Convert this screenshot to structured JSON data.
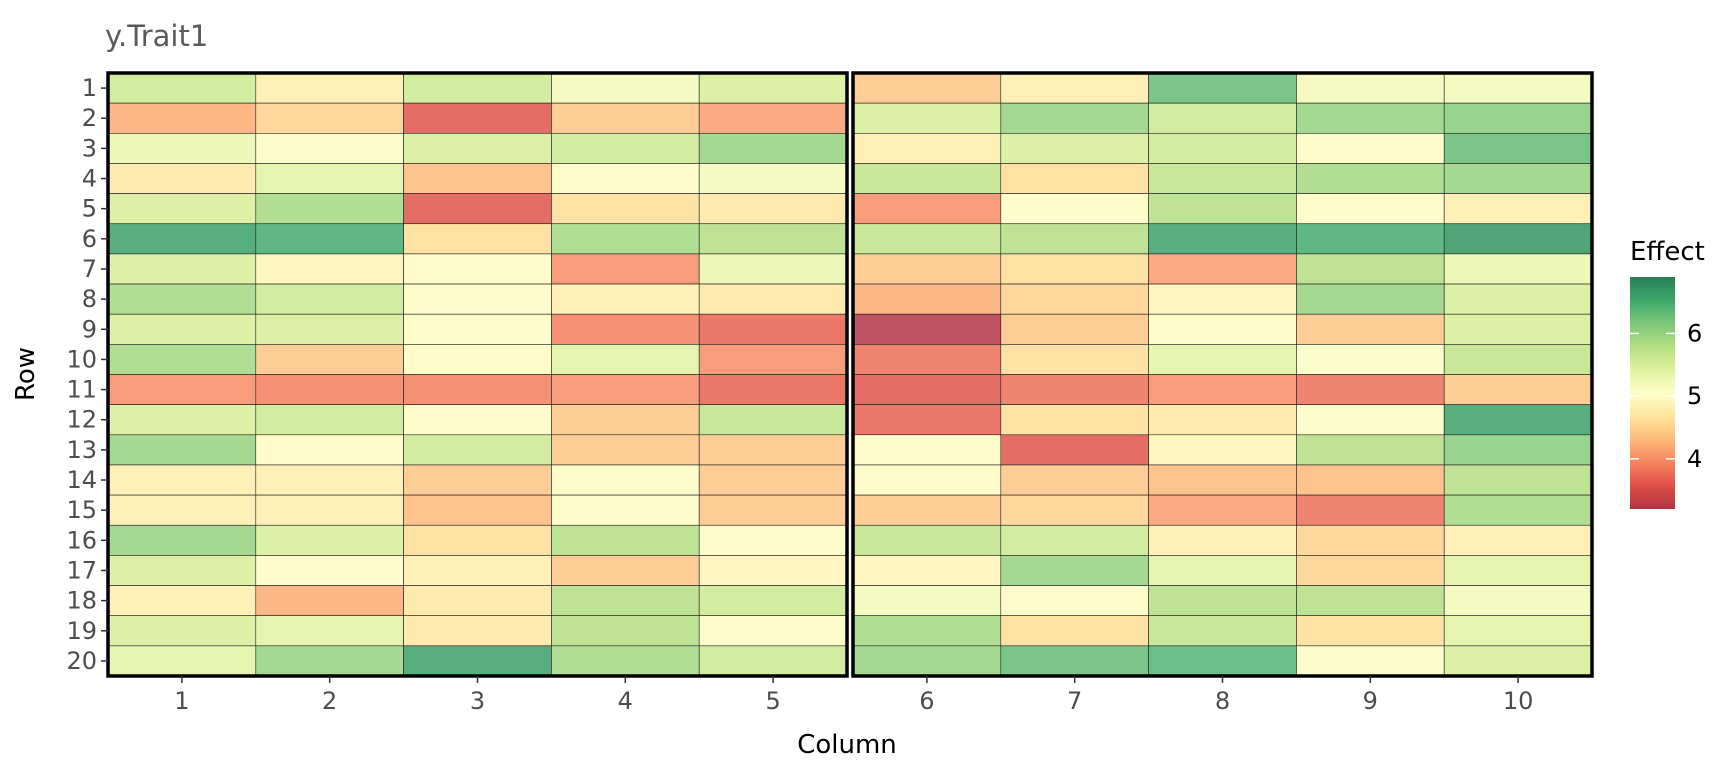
{
  "chart_data": {
    "type": "heatmap",
    "title": "y.Trait1",
    "xlabel": "Column",
    "ylabel": "Row",
    "x_categories": [
      "1",
      "2",
      "3",
      "4",
      "5",
      "6",
      "7",
      "8",
      "9",
      "10"
    ],
    "y_categories": [
      "1",
      "2",
      "3",
      "4",
      "5",
      "6",
      "7",
      "8",
      "9",
      "10",
      "11",
      "12",
      "13",
      "14",
      "15",
      "16",
      "17",
      "18",
      "19",
      "20"
    ],
    "panels": [
      {
        "columns": [
          "1",
          "2",
          "3",
          "4",
          "5"
        ]
      },
      {
        "columns": [
          "6",
          "7",
          "8",
          "9",
          "10"
        ]
      }
    ],
    "values": [
      [
        5.6,
        4.8,
        5.6,
        5.2,
        5.5,
        4.4,
        4.8,
        6.3,
        5.2,
        5.2
      ],
      [
        4.2,
        4.5,
        3.6,
        4.4,
        4.1,
        5.5,
        6.0,
        5.6,
        6.0,
        6.1
      ],
      [
        5.3,
        5.1,
        5.5,
        5.6,
        6.0,
        4.8,
        5.5,
        5.6,
        5.0,
        6.3
      ],
      [
        4.7,
        5.4,
        4.3,
        5.0,
        5.2,
        5.7,
        4.6,
        5.7,
        5.9,
        6.0
      ],
      [
        5.5,
        5.9,
        3.6,
        4.6,
        4.7,
        4.0,
        5.0,
        5.8,
        5.0,
        4.8
      ],
      [
        6.6,
        6.5,
        4.6,
        5.9,
        5.8,
        5.7,
        5.8,
        6.6,
        6.5,
        6.7
      ],
      [
        5.5,
        4.9,
        5.0,
        4.0,
        5.3,
        4.4,
        4.6,
        4.1,
        5.8,
        5.3
      ],
      [
        5.9,
        5.6,
        5.0,
        4.8,
        4.7,
        4.2,
        4.5,
        4.9,
        6.0,
        5.5
      ],
      [
        5.5,
        5.5,
        5.0,
        3.9,
        3.7,
        3.1,
        4.4,
        5.0,
        4.4,
        5.5
      ],
      [
        5.9,
        4.4,
        5.0,
        5.4,
        4.0,
        3.8,
        4.6,
        5.4,
        5.1,
        5.7
      ],
      [
        4.0,
        3.9,
        3.9,
        4.0,
        3.7,
        3.6,
        3.8,
        4.0,
        3.8,
        4.4
      ],
      [
        5.5,
        5.6,
        5.0,
        4.4,
        5.7,
        3.7,
        4.6,
        4.7,
        5.1,
        6.6
      ],
      [
        6.0,
        5.0,
        5.6,
        4.4,
        4.4,
        5.0,
        3.6,
        4.9,
        5.8,
        6.1
      ],
      [
        4.8,
        4.8,
        4.4,
        5.0,
        4.4,
        5.0,
        4.4,
        4.3,
        4.3,
        5.8
      ],
      [
        4.8,
        4.8,
        4.3,
        5.0,
        4.4,
        4.4,
        4.5,
        4.1,
        3.8,
        5.9
      ],
      [
        6.0,
        5.5,
        4.6,
        5.8,
        5.0,
        5.7,
        5.6,
        4.8,
        4.5,
        4.8
      ],
      [
        5.5,
        5.0,
        4.8,
        4.4,
        4.9,
        4.9,
        6.0,
        5.4,
        4.5,
        5.4
      ],
      [
        4.8,
        4.2,
        4.7,
        5.8,
        5.6,
        5.2,
        5.0,
        5.8,
        5.8,
        5.2
      ],
      [
        5.5,
        5.4,
        4.7,
        5.8,
        5.0,
        5.9,
        4.6,
        5.7,
        4.6,
        5.4
      ],
      [
        5.4,
        6.0,
        6.6,
        5.9,
        5.6,
        6.0,
        6.3,
        6.4,
        5.1,
        5.5
      ]
    ],
    "legend": {
      "title": "Effect",
      "placement": "right",
      "ticks": [
        4,
        5,
        6
      ],
      "range": [
        3.2,
        6.9
      ],
      "colorscale": [
        "#a50f24",
        "#d73027",
        "#f46d43",
        "#fdae61",
        "#fee08b",
        "#ffffbf",
        "#d9ef8b",
        "#a6d96a",
        "#66bd63",
        "#1a9850",
        "#006837"
      ]
    },
    "cell_alpha": 0.72,
    "grid": false
  }
}
